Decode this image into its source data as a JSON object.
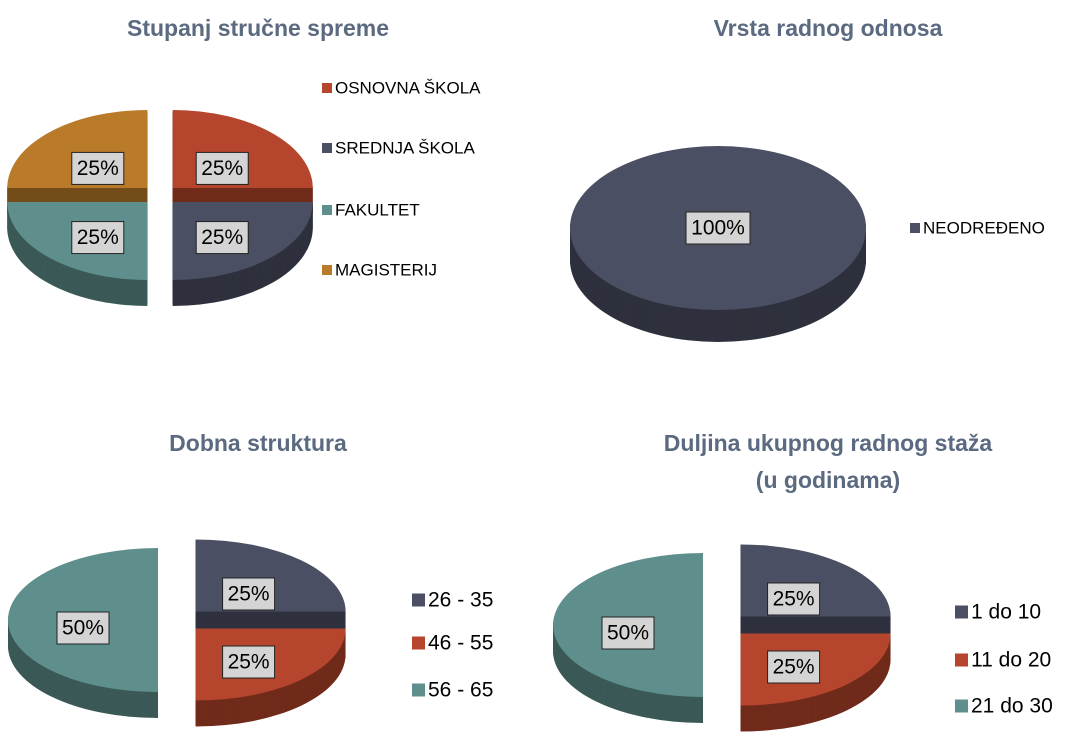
{
  "chart_data": [
    {
      "type": "pie",
      "title": "Stupanj stručne spreme",
      "categories": [
        "OSNOVNA ŠKOLA",
        "SREDNJA ŠKOLA",
        "FAKULTET",
        "MAGISTERIJ"
      ],
      "values": [
        25,
        25,
        25,
        25
      ],
      "value_labels": [
        "25%",
        "25%",
        "25%",
        "25%"
      ],
      "colors": [
        "#b5452c",
        "#4a4f63",
        "#5f8f8c",
        "#b97a2a"
      ],
      "legend": "right"
    },
    {
      "type": "pie",
      "title": "Vrsta radnog odnosa",
      "categories": [
        "NEODREĐENO"
      ],
      "values": [
        100
      ],
      "value_labels": [
        "100%"
      ],
      "colors": [
        "#4a4f63"
      ],
      "legend": "right"
    },
    {
      "type": "pie",
      "title": "Dobna struktura",
      "categories": [
        "26 - 35",
        "46 - 55",
        "56 - 65"
      ],
      "values": [
        25,
        25,
        50
      ],
      "value_labels": [
        "25%",
        "25%",
        "50%"
      ],
      "colors": [
        "#4a4f63",
        "#b5452c",
        "#5f8f8c"
      ],
      "legend": "right"
    },
    {
      "type": "pie",
      "title": [
        "Duljina ukupnog radnog staža",
        "(u godinama)"
      ],
      "categories": [
        "1 do 10",
        "11 do 20",
        "21 do 30"
      ],
      "values": [
        25,
        25,
        50
      ],
      "value_labels": [
        "25%",
        "25%",
        "50%"
      ],
      "colors": [
        "#4a4f63",
        "#b5452c",
        "#5f8f8c"
      ],
      "legend": "right"
    }
  ]
}
